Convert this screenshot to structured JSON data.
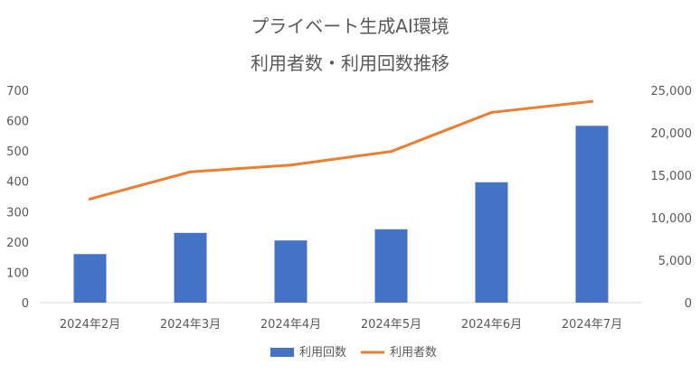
{
  "chart_data": {
    "type": "bar",
    "title": "プライベート生成AI環境",
    "subtitle": "利用者数・利用回数推移",
    "categories": [
      "2024年2月",
      "2024年3月",
      "2024年4月",
      "2024年5月",
      "2024年6月",
      "2024年7月"
    ],
    "series": [
      {
        "name": "利用回数",
        "type": "bar",
        "axis": "left",
        "color": "#4472C4",
        "values": [
          160,
          230,
          205,
          242,
          397,
          583
        ]
      },
      {
        "name": "利用者数",
        "type": "line",
        "axis": "right",
        "color": "#ED7D31",
        "values": [
          12200,
          15400,
          16200,
          17800,
          22400,
          23700
        ]
      }
    ],
    "y_left": {
      "min": 0,
      "max": 700,
      "step": 100,
      "tick_labels": [
        "0",
        "100",
        "200",
        "300",
        "400",
        "500",
        "600",
        "700"
      ]
    },
    "y_right": {
      "min": 0,
      "max": 25000,
      "step": 5000,
      "tick_labels": [
        "0",
        "5,000",
        "10,000",
        "15,000",
        "20,000",
        "25,000"
      ]
    },
    "grid": false,
    "legend_position": "bottom"
  }
}
